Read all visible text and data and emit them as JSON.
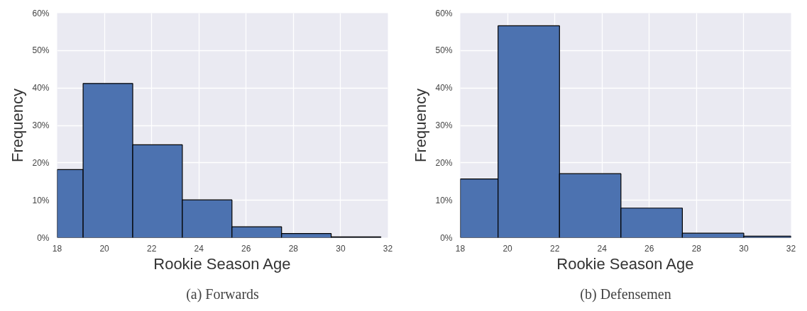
{
  "chart_data": [
    {
      "type": "histogram",
      "xlabel": "Rookie Season Age",
      "ylabel": "Frequency",
      "annotations": [
        "(a) Forwards"
      ],
      "color": "#4c72b0",
      "bins": [
        18,
        19.1,
        21.2,
        23.3,
        25.4,
        27.5,
        29.6,
        31.7
      ],
      "values": [
        18.2,
        41.2,
        24.8,
        10.1,
        2.9,
        1.1,
        0.2
      ],
      "xlim": [
        18,
        32
      ],
      "xticks": [
        18,
        20,
        22,
        24,
        26,
        28,
        30,
        32
      ],
      "ylim": [
        0,
        60
      ],
      "yticks": [
        {
          "value": 0,
          "label": "0%"
        },
        {
          "value": 10,
          "label": "10%"
        },
        {
          "value": 20,
          "label": "20%"
        },
        {
          "value": 30,
          "label": "30%"
        },
        {
          "value": 40,
          "label": "40%"
        },
        {
          "value": 50,
          "label": "50%"
        },
        {
          "value": 60,
          "label": "60%"
        }
      ],
      "grid": true
    },
    {
      "type": "histogram",
      "xlabel": "Rookie Season Age",
      "ylabel": "Frequency",
      "annotations": [
        "(b) Defensemen"
      ],
      "color": "#4c72b0",
      "bins": [
        18,
        19.6,
        22.2,
        24.8,
        27.4,
        30.0,
        32
      ],
      "values": [
        15.7,
        56.6,
        17.1,
        7.9,
        1.2,
        0.4
      ],
      "xlim": [
        18,
        32
      ],
      "xticks": [
        18,
        20,
        22,
        24,
        26,
        28,
        30,
        32
      ],
      "ylim": [
        0,
        60
      ],
      "yticks": [
        {
          "value": 0,
          "label": "0%"
        },
        {
          "value": 10,
          "label": "10%"
        },
        {
          "value": 20,
          "label": "20%"
        },
        {
          "value": 30,
          "label": "30%"
        },
        {
          "value": 40,
          "label": "40%"
        },
        {
          "value": 50,
          "label": "50%"
        },
        {
          "value": 60,
          "label": "60%"
        }
      ],
      "grid": true
    }
  ]
}
